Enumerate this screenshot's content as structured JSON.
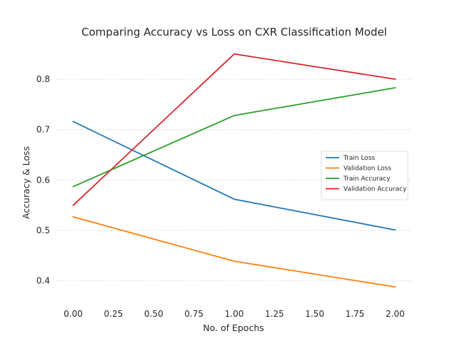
{
  "chart_data": {
    "type": "line",
    "title": "Comparing Accuracy vs Loss on CXR Classification Model",
    "xlabel": "No. of Epochs",
    "ylabel": "Accuracy & Loss",
    "x": [
      0,
      1,
      2
    ],
    "xlim": [
      -0.1,
      2.1
    ],
    "ylim": [
      0.36,
      0.875
    ],
    "xticks": [
      "0.00",
      "0.25",
      "0.50",
      "0.75",
      "1.00",
      "1.25",
      "1.50",
      "1.75",
      "2.00"
    ],
    "xtick_values": [
      0,
      0.25,
      0.5,
      0.75,
      1.0,
      1.25,
      1.5,
      1.75,
      2.0
    ],
    "yticks": [
      "0.4",
      "0.5",
      "0.6",
      "0.7",
      "0.8"
    ],
    "ytick_values": [
      0.4,
      0.5,
      0.6,
      0.7,
      0.8
    ],
    "grid": "horizontal dotted",
    "legend_position": "right",
    "series": [
      {
        "name": "Train Loss",
        "values": [
          0.716,
          0.562,
          0.501
        ],
        "color": "#1f77b4"
      },
      {
        "name": "Validation Loss",
        "values": [
          0.527,
          0.439,
          0.388
        ],
        "color": "#ff7f0e"
      },
      {
        "name": "Train Accuracy",
        "values": [
          0.587,
          0.728,
          0.783
        ],
        "color": "#2ca02c"
      },
      {
        "name": "Validation Accuracy",
        "values": [
          0.55,
          0.85,
          0.8
        ],
        "color": "#d62728"
      }
    ]
  }
}
